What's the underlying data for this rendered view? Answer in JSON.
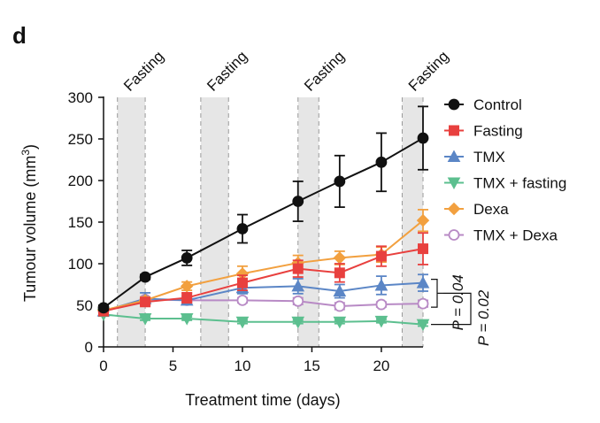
{
  "panel_label": "d",
  "chart_data": {
    "type": "line",
    "title": "",
    "xlabel": "Treatment time (days)",
    "ylabel_main": "Tumour volume (mm",
    "ylabel_sup": "3",
    "ylabel_close": ")",
    "xlim": [
      0,
      23
    ],
    "ylim": [
      0,
      300
    ],
    "xticks": [
      0,
      5,
      10,
      15,
      20
    ],
    "yticks": [
      0,
      50,
      100,
      150,
      200,
      250,
      300
    ],
    "fasting_periods": [
      {
        "label": "Fasting",
        "range": [
          1,
          3
        ]
      },
      {
        "label": "Fasting",
        "range": [
          7,
          9
        ]
      },
      {
        "label": "Fasting",
        "range": [
          14,
          15.5
        ]
      },
      {
        "label": "Fasting",
        "range": [
          21.5,
          23
        ]
      }
    ],
    "series": [
      {
        "name": "Control",
        "color": "#111111",
        "marker": "circle",
        "fill": "filled",
        "x": [
          0,
          3,
          6,
          10,
          14,
          17,
          20,
          23
        ],
        "y": [
          47,
          84,
          107,
          142,
          175,
          199,
          222,
          251
        ],
        "err": [
          3,
          3,
          9,
          17,
          24,
          31,
          35,
          38
        ]
      },
      {
        "name": "Fasting",
        "color": "#e8403e",
        "marker": "square",
        "fill": "filled",
        "x": [
          0,
          3,
          6,
          10,
          14,
          17,
          20,
          23
        ],
        "y": [
          43,
          54,
          59,
          77,
          94,
          89,
          109,
          118
        ],
        "err": [
          3,
          4,
          6,
          9,
          10,
          11,
          12,
          19
        ]
      },
      {
        "name": "TMX",
        "color": "#5b86c6",
        "marker": "triangle-up",
        "fill": "filled",
        "x": [
          0,
          3,
          6,
          10,
          14,
          17,
          20,
          23
        ],
        "y": [
          43,
          58,
          56,
          71,
          73,
          67,
          74,
          77
        ],
        "err": [
          3,
          7,
          5,
          7,
          9,
          8,
          11,
          10
        ]
      },
      {
        "name": "TMX + fasting",
        "color": "#5cbf8f",
        "marker": "triangle-down",
        "fill": "filled",
        "x": [
          0,
          3,
          6,
          10,
          14,
          17,
          20,
          23
        ],
        "y": [
          39,
          34,
          34,
          30,
          30,
          30,
          31,
          27
        ],
        "err": [
          2,
          2,
          2,
          2,
          2,
          2,
          2,
          2
        ]
      },
      {
        "name": "Dexa",
        "color": "#f2a03f",
        "marker": "diamond",
        "fill": "filled",
        "x": [
          0,
          3,
          6,
          10,
          14,
          17,
          20,
          23
        ],
        "y": [
          44,
          56,
          73,
          88,
          101,
          107,
          111,
          152
        ],
        "err": [
          3,
          4,
          5,
          9,
          9,
          8,
          9,
          13
        ]
      },
      {
        "name": "TMX + Dexa",
        "color": "#b88ac5",
        "marker": "circle",
        "fill": "open",
        "x": [
          0,
          3,
          6,
          10,
          14,
          17,
          20,
          23
        ],
        "y": [
          43,
          57,
          56,
          56,
          55,
          49,
          51,
          52
        ],
        "err": [
          2,
          3,
          3,
          3,
          4,
          4,
          3,
          4
        ]
      }
    ],
    "annotations": [
      {
        "label": "P = 0.04",
        "between": [
          "TMX",
          "TMX + Dexa"
        ]
      },
      {
        "label": "P = 0.02",
        "between": [
          "TMX + fasting",
          "TMX + Dexa"
        ]
      }
    ],
    "legend_position": "right"
  }
}
